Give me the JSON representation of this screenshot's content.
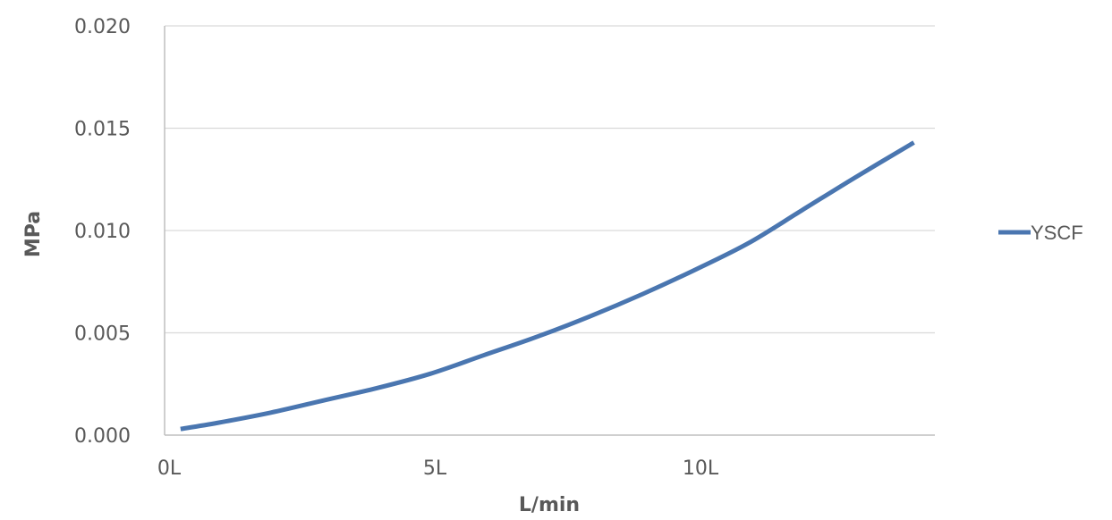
{
  "chart_data": {
    "type": "line",
    "title": "",
    "xlabel": "L/min",
    "ylabel": "MPa",
    "xlim": [
      0,
      15
    ],
    "ylim": [
      0,
      0.02
    ],
    "x_ticks": [
      {
        "value": 0,
        "label": "0L"
      },
      {
        "value": 5,
        "label": "5L"
      },
      {
        "value": 10,
        "label": "10L"
      }
    ],
    "y_ticks": [
      {
        "value": 0.0,
        "label": "0.000"
      },
      {
        "value": 0.005,
        "label": "0.005"
      },
      {
        "value": 0.01,
        "label": "0.010"
      },
      {
        "value": 0.015,
        "label": "0.015"
      },
      {
        "value": 0.02,
        "label": "0.020"
      }
    ],
    "grid": "horizontal",
    "legend_position": "right",
    "series": [
      {
        "name": "YSCF",
        "color": "#4a76b0",
        "x": [
          0.3,
          1,
          2,
          3,
          4,
          5,
          6,
          7,
          8,
          9,
          10,
          11,
          12,
          13,
          14.1
        ],
        "y": [
          0.0003,
          0.0006,
          0.0011,
          0.0017,
          0.0023,
          0.003,
          0.0039,
          0.0048,
          0.0058,
          0.0069,
          0.0081,
          0.0094,
          0.011,
          0.0126,
          0.0143
        ]
      }
    ]
  }
}
